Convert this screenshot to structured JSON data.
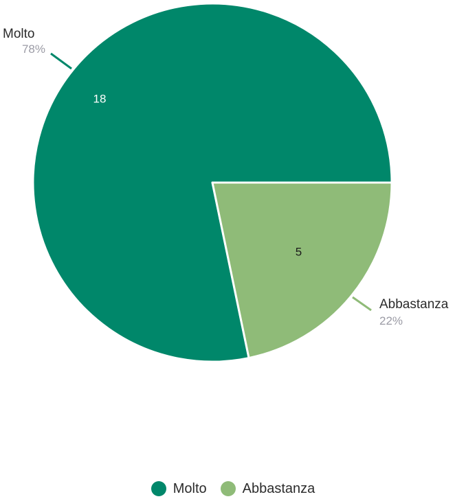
{
  "chart_data": {
    "type": "pie",
    "categories": [
      "Molto",
      "Abbastanza"
    ],
    "values": [
      18,
      5
    ],
    "percent_labels": [
      "78%",
      "22%"
    ],
    "colors": [
      "#00876a",
      "#8fbb78"
    ],
    "value_label_colors": [
      "#ffffff",
      "#1a1a1a"
    ],
    "legend_position": "bottom"
  }
}
